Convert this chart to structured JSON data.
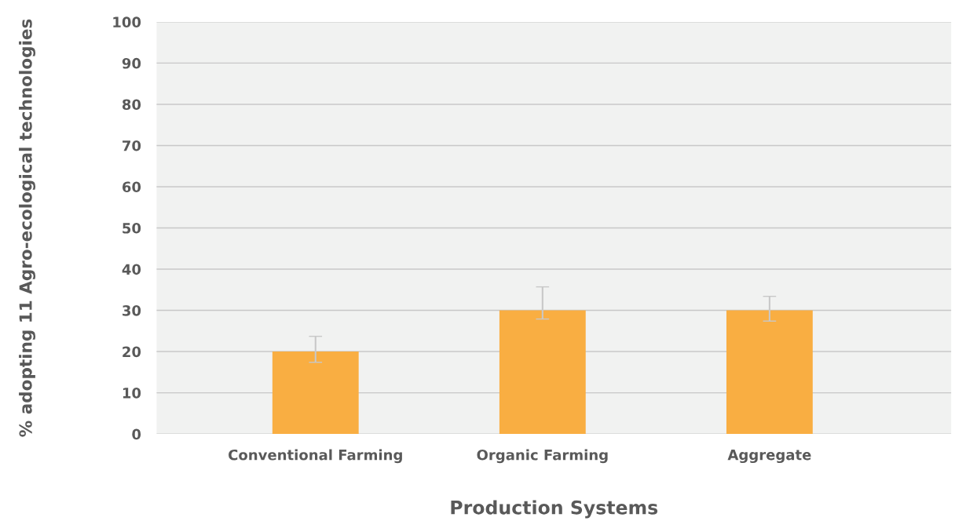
{
  "chart_data": {
    "type": "bar",
    "xlabel": "Production Systems",
    "ylabel": "% adopting 11 Agro-ecological technologies",
    "categories": [
      "Conventional Farming",
      "Organic Farming",
      "Aggregate"
    ],
    "values": [
      20,
      30,
      30
    ],
    "errors": [
      [
        17.4,
        23.7
      ],
      [
        27.9,
        35.7
      ],
      [
        27.4,
        33.4
      ]
    ],
    "color": "#f9ae42",
    "ylim": [
      0,
      100
    ],
    "yticks": [
      0,
      10,
      20,
      30,
      40,
      50,
      60,
      70,
      80,
      90,
      100
    ],
    "grid": "y"
  }
}
